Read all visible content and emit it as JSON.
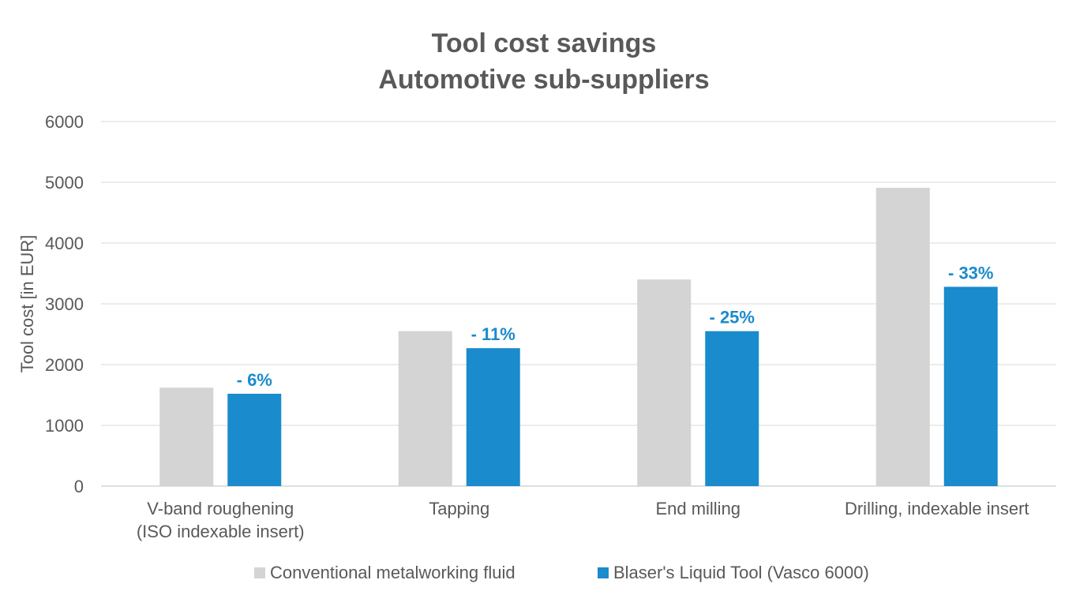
{
  "chart_data": {
    "type": "bar",
    "title": [
      "Tool cost savings",
      "Automotive sub-suppliers"
    ],
    "ylabel": "Tool cost [in EUR]",
    "xlabel": "",
    "ylim": [
      0,
      6000
    ],
    "yticks": [
      0,
      1000,
      2000,
      3000,
      4000,
      5000,
      6000
    ],
    "grid": true,
    "legend_position": "bottom",
    "categories": [
      [
        "V-band roughening",
        "(ISO indexable insert)"
      ],
      [
        "Tapping"
      ],
      [
        "End milling"
      ],
      [
        "Drilling, indexable insert"
      ]
    ],
    "series": [
      {
        "name": "Conventional metalworking fluid",
        "color": "#d4d4d4",
        "values": [
          1620,
          2550,
          3400,
          4910
        ]
      },
      {
        "name": "Blaser's Liquid Tool (Vasco 6000)",
        "color": "#1a8bcc",
        "values": [
          1520,
          2270,
          2550,
          3280
        ],
        "data_labels": [
          "- 6%",
          "- 11%",
          "- 25%",
          "- 33%"
        ]
      }
    ]
  }
}
